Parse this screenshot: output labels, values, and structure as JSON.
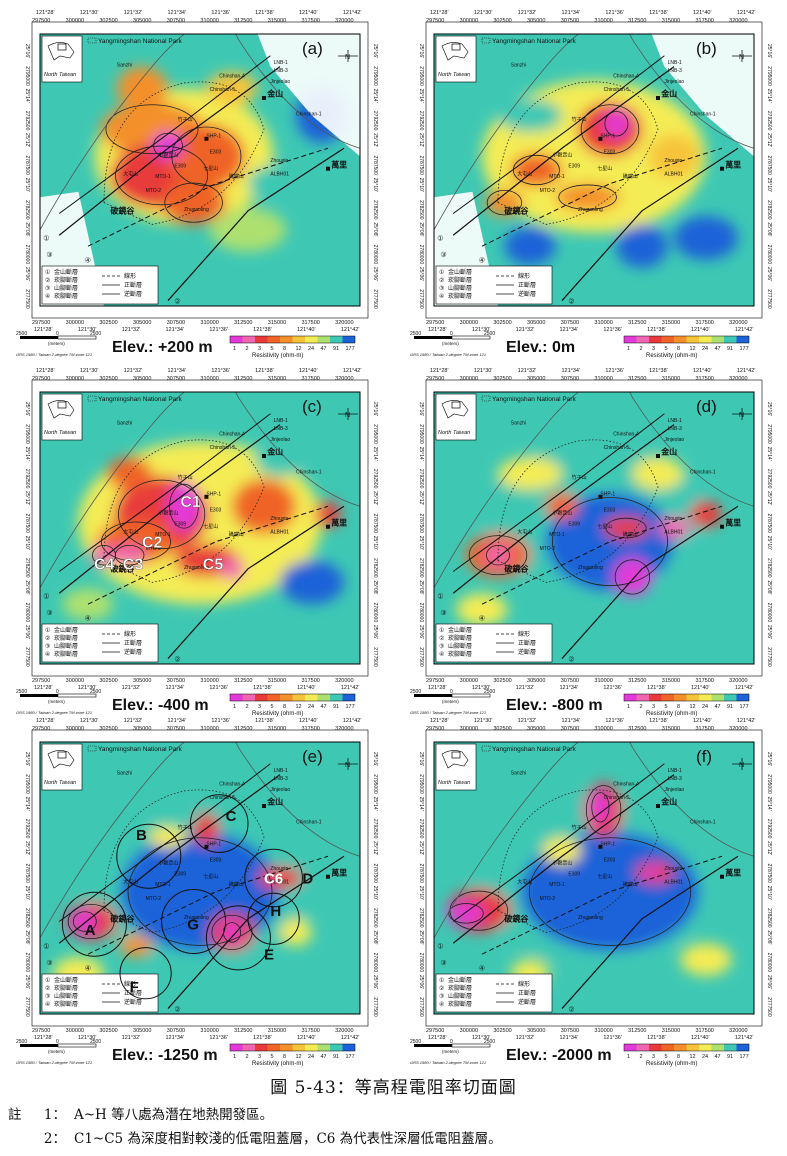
{
  "figure": {
    "caption": "圖 5-43：等高程電阻率切面圖",
    "notes_label": "註",
    "notes": [
      {
        "num": "1：",
        "text": "A~H 等八處為潛在地熱開發區。"
      },
      {
        "num": "2：",
        "text": "C1~C5 為深度相對較淺的低電阻蓋層，C6 為代表性深層低電阻蓋層。"
      }
    ]
  },
  "map_common": {
    "park_label": "Yangmingshan National Park",
    "north_taiwan": "North Taiwan",
    "top_lon": [
      "121°28'",
      "121°30'",
      "121°32'",
      "121°34'",
      "121°36'",
      "121°38'",
      "121°40'",
      "121°42'"
    ],
    "top_tm": [
      "297500",
      "300000",
      "302500",
      "305000",
      "307500",
      "310000",
      "312500",
      "315000",
      "317500",
      "320000"
    ],
    "bot_tm": [
      "297500",
      "300000",
      "302500",
      "305000",
      "307500",
      "310000",
      "312500",
      "315000",
      "317500",
      "320000"
    ],
    "bot_lon": [
      "121°28'",
      "121°30'",
      "121°32'",
      "121°34'",
      "121°36'",
      "121°38'",
      "121°40'",
      "121°42'"
    ],
    "left_ticks": [
      "25°16'",
      "2795000",
      "25°14'",
      "2792500",
      "25°12'",
      "2787500",
      "25°10'",
      "2782500",
      "25°08'",
      "2780000",
      "25°06'",
      "2777500"
    ],
    "place_labels": {
      "sanzhi": "Sanzhi",
      "chinshan4": "Chinshan-4",
      "chinshan5": "Chinshan-5",
      "lnb1": "LNB-1",
      "lnb3": "LNB-3",
      "jinshan": "金山",
      "jinjiao": "Jinjeolao",
      "chinshan1": "Chinshan-1",
      "shp": "SHP-1",
      "e303": "E303",
      "e309": "E309",
      "mto1": "MTO-1",
      "mto2": "MTO-2",
      "zhouxin": "Zhouxin",
      "albh": "ALBH01",
      "wanli": "萬里",
      "zhugaoling": "Zhugaoling",
      "qinglong": "破鏡谷",
      "zhuzi": "竹子山",
      "xiaoguan": "小觀音山",
      "datun": "大屯山",
      "qixing": "七星山",
      "huangzui": "磺嘴山"
    },
    "legend": [
      {
        "sym": "①",
        "text": "金山斷層"
      },
      {
        "sym": "②",
        "text": "崁腳斷層"
      },
      {
        "sym": "③",
        "text": "山腳斷層"
      },
      {
        "sym": "④",
        "text": "崁腳斷層"
      }
    ],
    "legend_right": [
      "線形",
      "正斷層",
      "逆斷層"
    ],
    "scale_nums": [
      "2500",
      "0",
      "2500"
    ],
    "scale_unit": "(meters)",
    "grs": "GRS 1980 / Taiwan 2-degree TM zone 121",
    "colorbar_ticks": [
      "1",
      "2",
      "3",
      "5",
      "8",
      "12",
      "24",
      "47",
      "91",
      "177"
    ],
    "colorbar_title": "Resistivity (ohm-m)",
    "colorbar_colors": [
      "#e23ad8",
      "#f066b0",
      "#e83a3a",
      "#f06428",
      "#f4902c",
      "#f6c43a",
      "#f4ec54",
      "#aee070",
      "#3ec8b4",
      "#1e62d8"
    ]
  },
  "panels": [
    {
      "id": "a",
      "label": "(a)",
      "elev": "Elev.: +200 m"
    },
    {
      "id": "b",
      "label": "(b)",
      "elev": "Elev.: 0m"
    },
    {
      "id": "c",
      "label": "(c)",
      "elev": "Elev.: -400 m",
      "zones": [
        "C1",
        "C2",
        "C3",
        "C4",
        "C5"
      ]
    },
    {
      "id": "d",
      "label": "(d)",
      "elev": "Elev.: -800 m"
    },
    {
      "id": "e",
      "label": "(e)",
      "elev": "Elev.: -1250 m",
      "zones": [
        "A",
        "B",
        "C",
        "C6",
        "D",
        "E",
        "F",
        "G",
        "H"
      ]
    },
    {
      "id": "f",
      "label": "(f)",
      "elev": "Elev.: -2000 m"
    }
  ]
}
